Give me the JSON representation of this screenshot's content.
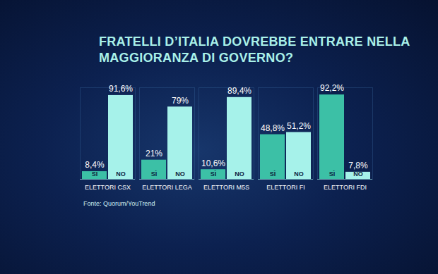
{
  "chart_data": {
    "type": "bar",
    "title": "FRATELLI D’ITALIA DOVREBBE ENTRARE NELLA MAGGIORANZA DI GOVERNO?",
    "source": "Fonte: Quorum/YouTrend",
    "categories": [
      "ELETTORI CSX",
      "ELETTORI LEGA",
      "ELETTORI M5S",
      "ELETTORI FI",
      "ELETTORI FDI"
    ],
    "series": [
      {
        "name": "SÌ",
        "color": "#3cc0a6",
        "values": [
          8.4,
          21,
          10.6,
          48.8,
          92.2
        ],
        "value_labels": [
          "8,4%",
          "21%",
          "10,6%",
          "48,8%",
          "92,2%"
        ]
      },
      {
        "name": "NO",
        "color": "#a6f2ea",
        "values": [
          91.6,
          79,
          89.4,
          51.2,
          7.8
        ],
        "value_labels": [
          "91,6%",
          "79%",
          "89,4%",
          "51,2%",
          "7,8%"
        ]
      }
    ],
    "ylim": [
      0,
      100
    ],
    "data_labels": true,
    "tick_labels": "x"
  }
}
